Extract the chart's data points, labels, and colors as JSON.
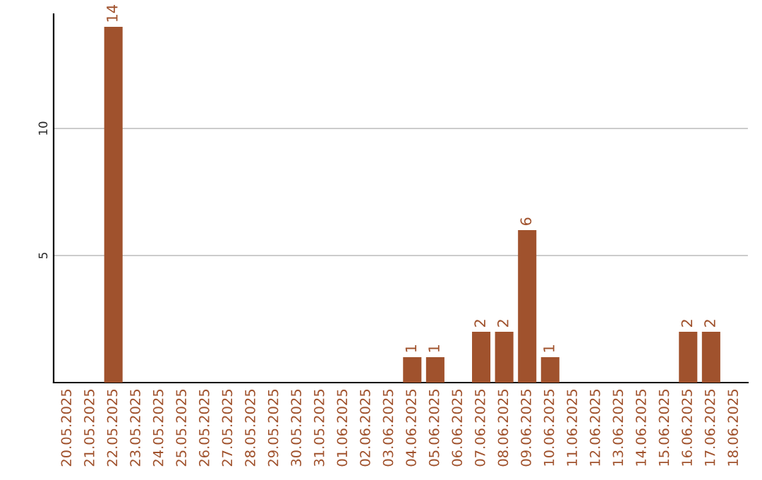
{
  "chart_data": {
    "type": "bar",
    "categories": [
      "20.05.2025",
      "21.05.2025",
      "22.05.2025",
      "23.05.2025",
      "24.05.2025",
      "25.05.2025",
      "26.05.2025",
      "27.05.2025",
      "28.05.2025",
      "29.05.2025",
      "30.05.2025",
      "31.05.2025",
      "01.06.2025",
      "02.06.2025",
      "03.06.2025",
      "04.06.2025",
      "05.06.2025",
      "06.06.2025",
      "07.06.2025",
      "08.06.2025",
      "09.06.2025",
      "10.06.2025",
      "11.06.2025",
      "12.06.2025",
      "13.06.2025",
      "14.06.2025",
      "15.06.2025",
      "16.06.2025",
      "17.06.2025",
      "18.06.2025"
    ],
    "values": [
      0,
      0,
      14,
      0,
      0,
      0,
      0,
      0,
      0,
      0,
      0,
      0,
      0,
      0,
      0,
      1,
      1,
      0,
      2,
      2,
      6,
      1,
      0,
      0,
      0,
      0,
      0,
      2,
      2,
      0
    ],
    "value_labels": [
      null,
      null,
      "14",
      null,
      null,
      null,
      null,
      null,
      null,
      null,
      null,
      null,
      null,
      null,
      null,
      "1",
      "1",
      null,
      "2",
      "2",
      "6",
      "1",
      null,
      null,
      null,
      null,
      null,
      "2",
      "2",
      null
    ],
    "color": "#a0522d",
    "ylim": [
      0,
      14.5
    ],
    "yticks": [
      5,
      10
    ],
    "grid": "y"
  }
}
